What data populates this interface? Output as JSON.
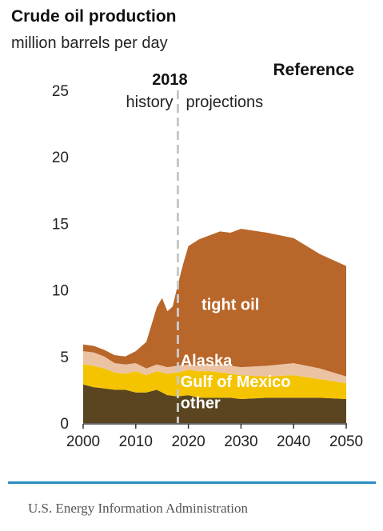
{
  "chart_data": {
    "type": "area",
    "title": "Crude oil production",
    "subtitle": "million barrels per day",
    "scenario_label": "Reference",
    "divider": {
      "year": 2018,
      "label": "2018",
      "left_label": "history",
      "right_label": "projections"
    },
    "xlim": [
      2000,
      2050
    ],
    "ylim": [
      0,
      25
    ],
    "x_ticks": [
      2000,
      2010,
      2020,
      2030,
      2040,
      2050
    ],
    "y_ticks": [
      0,
      5,
      10,
      15,
      20,
      25
    ],
    "stacked": true,
    "series": [
      {
        "name": "other",
        "color": "#5a4520",
        "label_color": "#ffffff",
        "label_at": [
          2018.5,
          1.1
        ],
        "points": [
          [
            2000,
            2.9
          ],
          [
            2002,
            2.7
          ],
          [
            2004,
            2.6
          ],
          [
            2006,
            2.5
          ],
          [
            2008,
            2.5
          ],
          [
            2010,
            2.3
          ],
          [
            2012,
            2.3
          ],
          [
            2014,
            2.5
          ],
          [
            2016,
            2.1
          ],
          [
            2018,
            2.0
          ],
          [
            2020,
            2.1
          ],
          [
            2022,
            1.9
          ],
          [
            2024,
            1.9
          ],
          [
            2026,
            1.9
          ],
          [
            2028,
            1.9
          ],
          [
            2030,
            1.8
          ],
          [
            2035,
            1.9
          ],
          [
            2040,
            1.9
          ],
          [
            2045,
            1.9
          ],
          [
            2050,
            1.8
          ]
        ]
      },
      {
        "name": "Gulf of Mexico",
        "color": "#f5c400",
        "label_color": "#ffffff",
        "label_at": [
          2018.5,
          2.7
        ],
        "points": [
          [
            2000,
            1.5
          ],
          [
            2002,
            1.6
          ],
          [
            2004,
            1.5
          ],
          [
            2006,
            1.3
          ],
          [
            2008,
            1.2
          ],
          [
            2010,
            1.6
          ],
          [
            2012,
            1.3
          ],
          [
            2014,
            1.4
          ],
          [
            2016,
            1.6
          ],
          [
            2018,
            1.8
          ],
          [
            2020,
            1.9
          ],
          [
            2022,
            2.0
          ],
          [
            2024,
            2.0
          ],
          [
            2026,
            1.9
          ],
          [
            2028,
            1.8
          ],
          [
            2030,
            1.8
          ],
          [
            2035,
            1.6
          ],
          [
            2040,
            1.7
          ],
          [
            2045,
            1.4
          ],
          [
            2050,
            1.2
          ]
        ]
      },
      {
        "name": "Alaska",
        "color": "#ebc3a3",
        "label_color": "#ffffff",
        "label_at": [
          2018.5,
          4.3
        ],
        "points": [
          [
            2000,
            1.0
          ],
          [
            2002,
            1.0
          ],
          [
            2004,
            0.9
          ],
          [
            2006,
            0.7
          ],
          [
            2008,
            0.7
          ],
          [
            2010,
            0.6
          ],
          [
            2012,
            0.5
          ],
          [
            2014,
            0.5
          ],
          [
            2016,
            0.5
          ],
          [
            2018,
            0.5
          ],
          [
            2020,
            0.4
          ],
          [
            2022,
            0.4
          ],
          [
            2024,
            0.5
          ],
          [
            2026,
            0.6
          ],
          [
            2028,
            0.6
          ],
          [
            2030,
            0.6
          ],
          [
            2035,
            0.8
          ],
          [
            2040,
            0.9
          ],
          [
            2045,
            0.8
          ],
          [
            2050,
            0.5
          ]
        ]
      },
      {
        "name": "tight oil",
        "color": "#b8662a",
        "label_color": "#ffffff",
        "label_at": [
          2022.5,
          8.5
        ],
        "points": [
          [
            2000,
            0.5
          ],
          [
            2002,
            0.5
          ],
          [
            2004,
            0.5
          ],
          [
            2006,
            0.6
          ],
          [
            2008,
            0.6
          ],
          [
            2010,
            0.9
          ],
          [
            2012,
            2.0
          ],
          [
            2014,
            4.3
          ],
          [
            2015,
            5.1
          ],
          [
            2016,
            4.2
          ],
          [
            2017,
            4.5
          ],
          [
            2018,
            6.1
          ],
          [
            2019,
            7.6
          ],
          [
            2020,
            8.9
          ],
          [
            2022,
            9.5
          ],
          [
            2024,
            9.7
          ],
          [
            2026,
            10.0
          ],
          [
            2028,
            10.0
          ],
          [
            2030,
            10.4
          ],
          [
            2035,
            10.0
          ],
          [
            2040,
            9.4
          ],
          [
            2045,
            8.6
          ],
          [
            2050,
            8.3
          ]
        ]
      }
    ]
  },
  "footer": {
    "source": "U.S. Energy Information Administration",
    "rule_color": "#2a8ec6"
  }
}
